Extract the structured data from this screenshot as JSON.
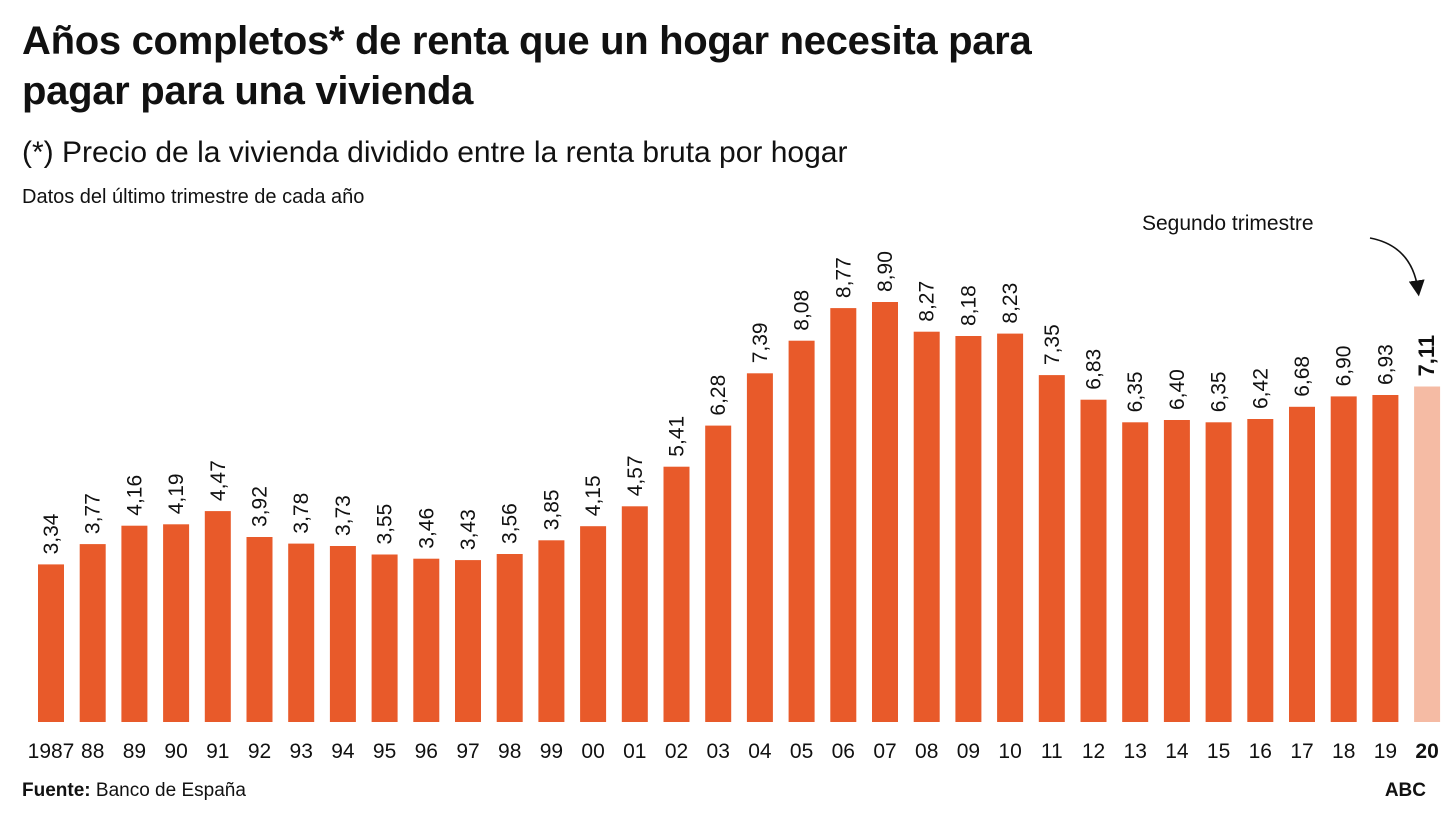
{
  "title": "Años completos* de renta que un hogar necesita para pagar para una vivienda",
  "subtitle": "(*) Precio de la vivienda dividido entre la renta bruta por hogar",
  "note": "Datos del último trimestre de cada año",
  "annotation": "Segundo trimestre",
  "source": {
    "label": "Fuente:",
    "text": "Banco de España"
  },
  "brand": "ABC",
  "colors": {
    "bar": "#e85a2a",
    "bar_highlight": "#f5bba4",
    "text": "#111111"
  },
  "chart_data": {
    "type": "bar",
    "categories": [
      "1987",
      "88",
      "89",
      "90",
      "91",
      "92",
      "93",
      "94",
      "95",
      "96",
      "97",
      "98",
      "99",
      "00",
      "01",
      "02",
      "03",
      "04",
      "05",
      "06",
      "07",
      "08",
      "09",
      "10",
      "11",
      "12",
      "13",
      "14",
      "15",
      "16",
      "17",
      "18",
      "19",
      "20"
    ],
    "values": [
      3.34,
      3.77,
      4.16,
      4.19,
      4.47,
      3.92,
      3.78,
      3.73,
      3.55,
      3.46,
      3.43,
      3.56,
      3.85,
      4.15,
      4.57,
      5.41,
      6.28,
      7.39,
      8.08,
      8.77,
      8.9,
      8.27,
      8.18,
      8.23,
      7.35,
      6.83,
      6.35,
      6.4,
      6.35,
      6.42,
      6.68,
      6.9,
      6.93,
      7.11
    ],
    "value_labels": [
      "3,34",
      "3,77",
      "4,16",
      "4,19",
      "4,47",
      "3,92",
      "3,78",
      "3,73",
      "3,55",
      "3,46",
      "3,43",
      "3,56",
      "3,85",
      "4,15",
      "4,57",
      "5,41",
      "6,28",
      "7,39",
      "8,08",
      "8,77",
      "8,90",
      "8,27",
      "8,18",
      "8,23",
      "7,35",
      "6,83",
      "6,35",
      "6,40",
      "6,35",
      "6,42",
      "6,68",
      "6,90",
      "6,93",
      "7,11"
    ],
    "highlight_index": 33,
    "ylim": [
      0,
      9
    ],
    "grid": false,
    "xlabel": "",
    "ylabel": ""
  }
}
